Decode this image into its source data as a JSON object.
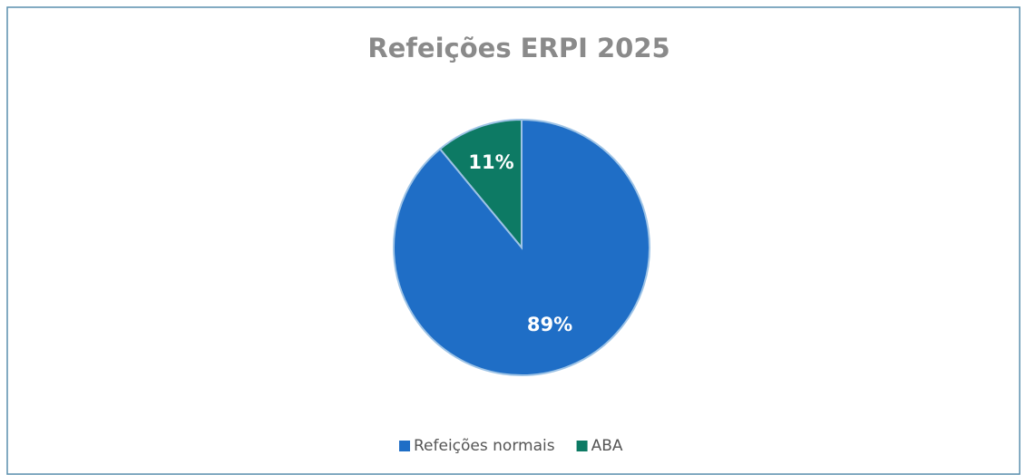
{
  "chart_data": {
    "type": "pie",
    "title": "Refeições ERPI 2025",
    "categories": [
      "Refeições normais",
      "ABA"
    ],
    "values": [
      89,
      11
    ],
    "value_labels": [
      "89%",
      "11%"
    ],
    "colors": [
      "#1f6ec6",
      "#0d7a64"
    ],
    "legend": "bottom"
  }
}
